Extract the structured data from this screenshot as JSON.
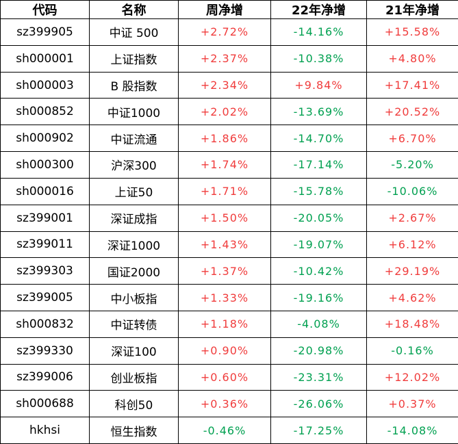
{
  "chart_data": {
    "type": "table",
    "columns": [
      "代码",
      "名称",
      "周净增",
      "22年净增",
      "21年净增"
    ],
    "rows": [
      {
        "code": "sz399905",
        "name": "中证 500",
        "week": "+2.72%",
        "y2022": "-14.16%",
        "y2021": "+15.58%"
      },
      {
        "code": "sh000001",
        "name": "上证指数",
        "week": "+2.37%",
        "y2022": "-10.38%",
        "y2021": "+4.80%"
      },
      {
        "code": "sh000003",
        "name": "B 股指数",
        "week": "+2.34%",
        "y2022": "+9.84%",
        "y2021": "+17.41%"
      },
      {
        "code": "sh000852",
        "name": "中证1000",
        "week": "+2.02%",
        "y2022": "-13.69%",
        "y2021": "+20.52%"
      },
      {
        "code": "sh000902",
        "name": "中证流通",
        "week": "+1.86%",
        "y2022": "-14.70%",
        "y2021": "+6.70%"
      },
      {
        "code": "sh000300",
        "name": "沪深300",
        "week": "+1.74%",
        "y2022": "-17.14%",
        "y2021": "-5.20%"
      },
      {
        "code": "sh000016",
        "name": "上证50",
        "week": "+1.71%",
        "y2022": "-15.78%",
        "y2021": "-10.06%"
      },
      {
        "code": "sz399001",
        "name": "深证成指",
        "week": "+1.50%",
        "y2022": "-20.05%",
        "y2021": "+2.67%"
      },
      {
        "code": "sz399011",
        "name": "深证1000",
        "week": "+1.43%",
        "y2022": "-19.07%",
        "y2021": "+6.12%"
      },
      {
        "code": "sz399303",
        "name": "国证2000",
        "week": "+1.37%",
        "y2022": "-10.42%",
        "y2021": "+29.19%"
      },
      {
        "code": "sz399005",
        "name": "中小板指",
        "week": "+1.33%",
        "y2022": "-19.16%",
        "y2021": "+4.62%"
      },
      {
        "code": "sh000832",
        "name": "中证转债",
        "week": "+1.18%",
        "y2022": "-4.08%",
        "y2021": "+18.48%"
      },
      {
        "code": "sz399330",
        "name": "深证100",
        "week": "+0.90%",
        "y2022": "-20.98%",
        "y2021": "-0.16%"
      },
      {
        "code": "sz399006",
        "name": "创业板指",
        "week": "+0.60%",
        "y2022": "-23.31%",
        "y2021": "+12.02%"
      },
      {
        "code": "sh000688",
        "name": "科创50",
        "week": "+0.36%",
        "y2022": "-26.06%",
        "y2021": "+0.37%"
      },
      {
        "code": "hkhsi",
        "name": "恒生指数",
        "week": "-0.46%",
        "y2022": "-17.25%",
        "y2021": "-14.08%"
      }
    ]
  },
  "colors": {
    "positive": "#f03c3c",
    "negative": "#00a050",
    "grid": "#000000",
    "background": "#ffffff",
    "text": "#000000"
  }
}
